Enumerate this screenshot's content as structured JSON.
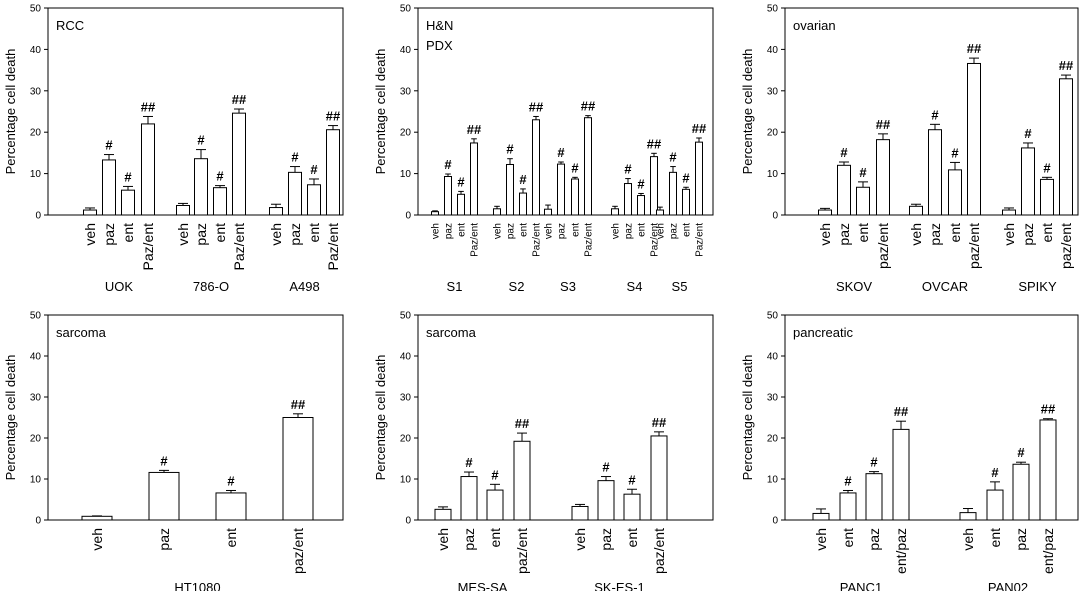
{
  "chart_data": [
    {
      "type": "bar",
      "title": "RCC",
      "ylabel": "Percentage cell death",
      "ylim": [
        0,
        50
      ],
      "yticks": [
        0,
        10,
        20,
        30,
        40,
        50
      ],
      "groups": [
        {
          "label": "UOK",
          "bars": [
            {
              "label": "veh",
              "value": 1.2,
              "err": 0.5,
              "marker": ""
            },
            {
              "label": "paz",
              "value": 13.3,
              "err": 1.3,
              "marker": "#"
            },
            {
              "label": "ent",
              "value": 6.0,
              "err": 0.9,
              "marker": "#"
            },
            {
              "label": "Paz/ent",
              "value": 22.0,
              "err": 1.8,
              "marker": "##"
            }
          ]
        },
        {
          "label": "786-O",
          "bars": [
            {
              "label": "veh",
              "value": 2.3,
              "err": 0.5,
              "marker": ""
            },
            {
              "label": "paz",
              "value": 13.6,
              "err": 2.2,
              "marker": "#"
            },
            {
              "label": "ent",
              "value": 6.6,
              "err": 0.5,
              "marker": "#"
            },
            {
              "label": "Paz/ent",
              "value": 24.6,
              "err": 1.0,
              "marker": "##"
            }
          ]
        },
        {
          "label": "A498",
          "bars": [
            {
              "label": "veh",
              "value": 1.8,
              "err": 0.8,
              "marker": ""
            },
            {
              "label": "paz",
              "value": 10.3,
              "err": 1.4,
              "marker": "#"
            },
            {
              "label": "ent",
              "value": 7.3,
              "err": 1.4,
              "marker": "#"
            },
            {
              "label": "Paz/ent",
              "value": 20.6,
              "err": 1.0,
              "marker": "##"
            }
          ]
        }
      ]
    },
    {
      "type": "bar",
      "title": "H&N",
      "subtitle": "PDX",
      "ylabel": "Percentage cell death",
      "ylim": [
        0,
        50
      ],
      "yticks": [
        0,
        10,
        20,
        30,
        40,
        50
      ],
      "groups": [
        {
          "label": "S1",
          "bars": [
            {
              "label": "veh",
              "value": 0.8,
              "err": 0.2,
              "marker": ""
            },
            {
              "label": "paz",
              "value": 9.3,
              "err": 0.6,
              "marker": "#"
            },
            {
              "label": "ent",
              "value": 5.0,
              "err": 0.7,
              "marker": "#"
            },
            {
              "label": "Paz/ent",
              "value": 17.4,
              "err": 1.0,
              "marker": "##"
            }
          ]
        },
        {
          "label": "S2",
          "bars": [
            {
              "label": "veh",
              "value": 1.5,
              "err": 0.6,
              "marker": ""
            },
            {
              "label": "paz",
              "value": 12.2,
              "err": 1.4,
              "marker": "#"
            },
            {
              "label": "ent",
              "value": 5.3,
              "err": 1.0,
              "marker": "#"
            },
            {
              "label": "Paz/ent",
              "value": 23.0,
              "err": 0.8,
              "marker": "##"
            }
          ]
        },
        {
          "label": "S3",
          "bars": [
            {
              "label": "veh",
              "value": 1.4,
              "err": 1.0,
              "marker": ""
            },
            {
              "label": "paz",
              "value": 12.3,
              "err": 0.5,
              "marker": "#"
            },
            {
              "label": "ent",
              "value": 8.7,
              "err": 0.4,
              "marker": "#"
            },
            {
              "label": "Paz/ent",
              "value": 23.5,
              "err": 0.5,
              "marker": "##"
            }
          ]
        },
        {
          "label": "S4",
          "bars": [
            {
              "label": "veh",
              "value": 1.5,
              "err": 0.6,
              "marker": ""
            },
            {
              "label": "paz",
              "value": 7.6,
              "err": 1.2,
              "marker": "#"
            },
            {
              "label": "ent",
              "value": 4.7,
              "err": 0.5,
              "marker": "#"
            },
            {
              "label": "Paz/ent",
              "value": 14.1,
              "err": 0.8,
              "marker": "##"
            }
          ]
        },
        {
          "label": "S5",
          "bars": [
            {
              "label": "veh",
              "value": 1.2,
              "err": 0.7,
              "marker": ""
            },
            {
              "label": "paz",
              "value": 10.3,
              "err": 1.4,
              "marker": "#"
            },
            {
              "label": "ent",
              "value": 6.2,
              "err": 0.5,
              "marker": "#"
            },
            {
              "label": "Paz/ent",
              "value": 17.6,
              "err": 1.0,
              "marker": "##"
            }
          ]
        }
      ]
    },
    {
      "type": "bar",
      "title": "ovarian",
      "ylabel": "Percentage cell death",
      "ylim": [
        0,
        50
      ],
      "yticks": [
        0,
        10,
        20,
        30,
        40,
        50
      ],
      "groups": [
        {
          "label": "SKOV",
          "bars": [
            {
              "label": "veh",
              "value": 1.2,
              "err": 0.4,
              "marker": ""
            },
            {
              "label": "paz",
              "value": 12.0,
              "err": 0.8,
              "marker": "#"
            },
            {
              "label": "ent",
              "value": 6.7,
              "err": 1.3,
              "marker": "#"
            },
            {
              "label": "paz/ent",
              "value": 18.2,
              "err": 1.4,
              "marker": "##"
            }
          ]
        },
        {
          "label": "OVCAR",
          "bars": [
            {
              "label": "veh",
              "value": 2.1,
              "err": 0.5,
              "marker": ""
            },
            {
              "label": "paz",
              "value": 20.6,
              "err": 1.3,
              "marker": "#"
            },
            {
              "label": "ent",
              "value": 10.9,
              "err": 1.8,
              "marker": "#"
            },
            {
              "label": "paz/ent",
              "value": 36.6,
              "err": 1.3,
              "marker": "##"
            }
          ]
        },
        {
          "label": "SPIKY",
          "bars": [
            {
              "label": "veh",
              "value": 1.2,
              "err": 0.5,
              "marker": ""
            },
            {
              "label": "paz",
              "value": 16.2,
              "err": 1.2,
              "marker": "#"
            },
            {
              "label": "ent",
              "value": 8.6,
              "err": 0.5,
              "marker": "#"
            },
            {
              "label": "paz/ent",
              "value": 32.9,
              "err": 0.9,
              "marker": "##"
            }
          ]
        }
      ]
    },
    {
      "type": "bar",
      "title": "sarcoma",
      "ylabel": "Percentage cell death",
      "ylim": [
        0,
        50
      ],
      "yticks": [
        0,
        10,
        20,
        30,
        40,
        50
      ],
      "groups": [
        {
          "label": "HT1080",
          "bars": [
            {
              "label": "veh",
              "value": 0.9,
              "err": 0.1,
              "marker": ""
            },
            {
              "label": "paz",
              "value": 11.6,
              "err": 0.5,
              "marker": "#"
            },
            {
              "label": "ent",
              "value": 6.6,
              "err": 0.6,
              "marker": "#"
            },
            {
              "label": "paz/ent",
              "value": 25.0,
              "err": 0.9,
              "marker": "##"
            }
          ]
        }
      ]
    },
    {
      "type": "bar",
      "title": "sarcoma",
      "ylabel": "Percentage cell death",
      "ylim": [
        0,
        50
      ],
      "yticks": [
        0,
        10,
        20,
        30,
        40,
        50
      ],
      "groups": [
        {
          "label": "MES-SA",
          "bars": [
            {
              "label": "veh",
              "value": 2.6,
              "err": 0.6,
              "marker": ""
            },
            {
              "label": "paz",
              "value": 10.6,
              "err": 1.1,
              "marker": "#"
            },
            {
              "label": "ent",
              "value": 7.3,
              "err": 1.4,
              "marker": "#"
            },
            {
              "label": "paz/ent",
              "value": 19.2,
              "err": 2.0,
              "marker": "##"
            }
          ]
        },
        {
          "label": "SK-ES-1",
          "bars": [
            {
              "label": "veh",
              "value": 3.3,
              "err": 0.5,
              "marker": ""
            },
            {
              "label": "paz",
              "value": 9.6,
              "err": 1.0,
              "marker": "#"
            },
            {
              "label": "ent",
              "value": 6.3,
              "err": 1.2,
              "marker": "#"
            },
            {
              "label": "paz/ent",
              "value": 20.5,
              "err": 1.0,
              "marker": "##"
            }
          ]
        }
      ]
    },
    {
      "type": "bar",
      "title": "pancreatic",
      "ylabel": "Percentage cell death",
      "ylim": [
        0,
        50
      ],
      "yticks": [
        0,
        10,
        20,
        30,
        40,
        50
      ],
      "groups": [
        {
          "label": "PANC1",
          "bars": [
            {
              "label": "veh",
              "value": 1.6,
              "err": 1.1,
              "marker": ""
            },
            {
              "label": "ent",
              "value": 6.6,
              "err": 0.6,
              "marker": "#"
            },
            {
              "label": "paz",
              "value": 11.3,
              "err": 0.5,
              "marker": "#"
            },
            {
              "label": "ent/paz",
              "value": 22.1,
              "err": 2.0,
              "marker": "##"
            }
          ]
        },
        {
          "label": "PAN02",
          "bars": [
            {
              "label": "veh",
              "value": 1.8,
              "err": 1.0,
              "marker": ""
            },
            {
              "label": "ent",
              "value": 7.3,
              "err": 2.0,
              "marker": "#"
            },
            {
              "label": "paz",
              "value": 13.6,
              "err": 0.5,
              "marker": "#"
            },
            {
              "label": "ent/paz",
              "value": 24.4,
              "err": 0.3,
              "marker": "##"
            }
          ]
        }
      ]
    }
  ]
}
